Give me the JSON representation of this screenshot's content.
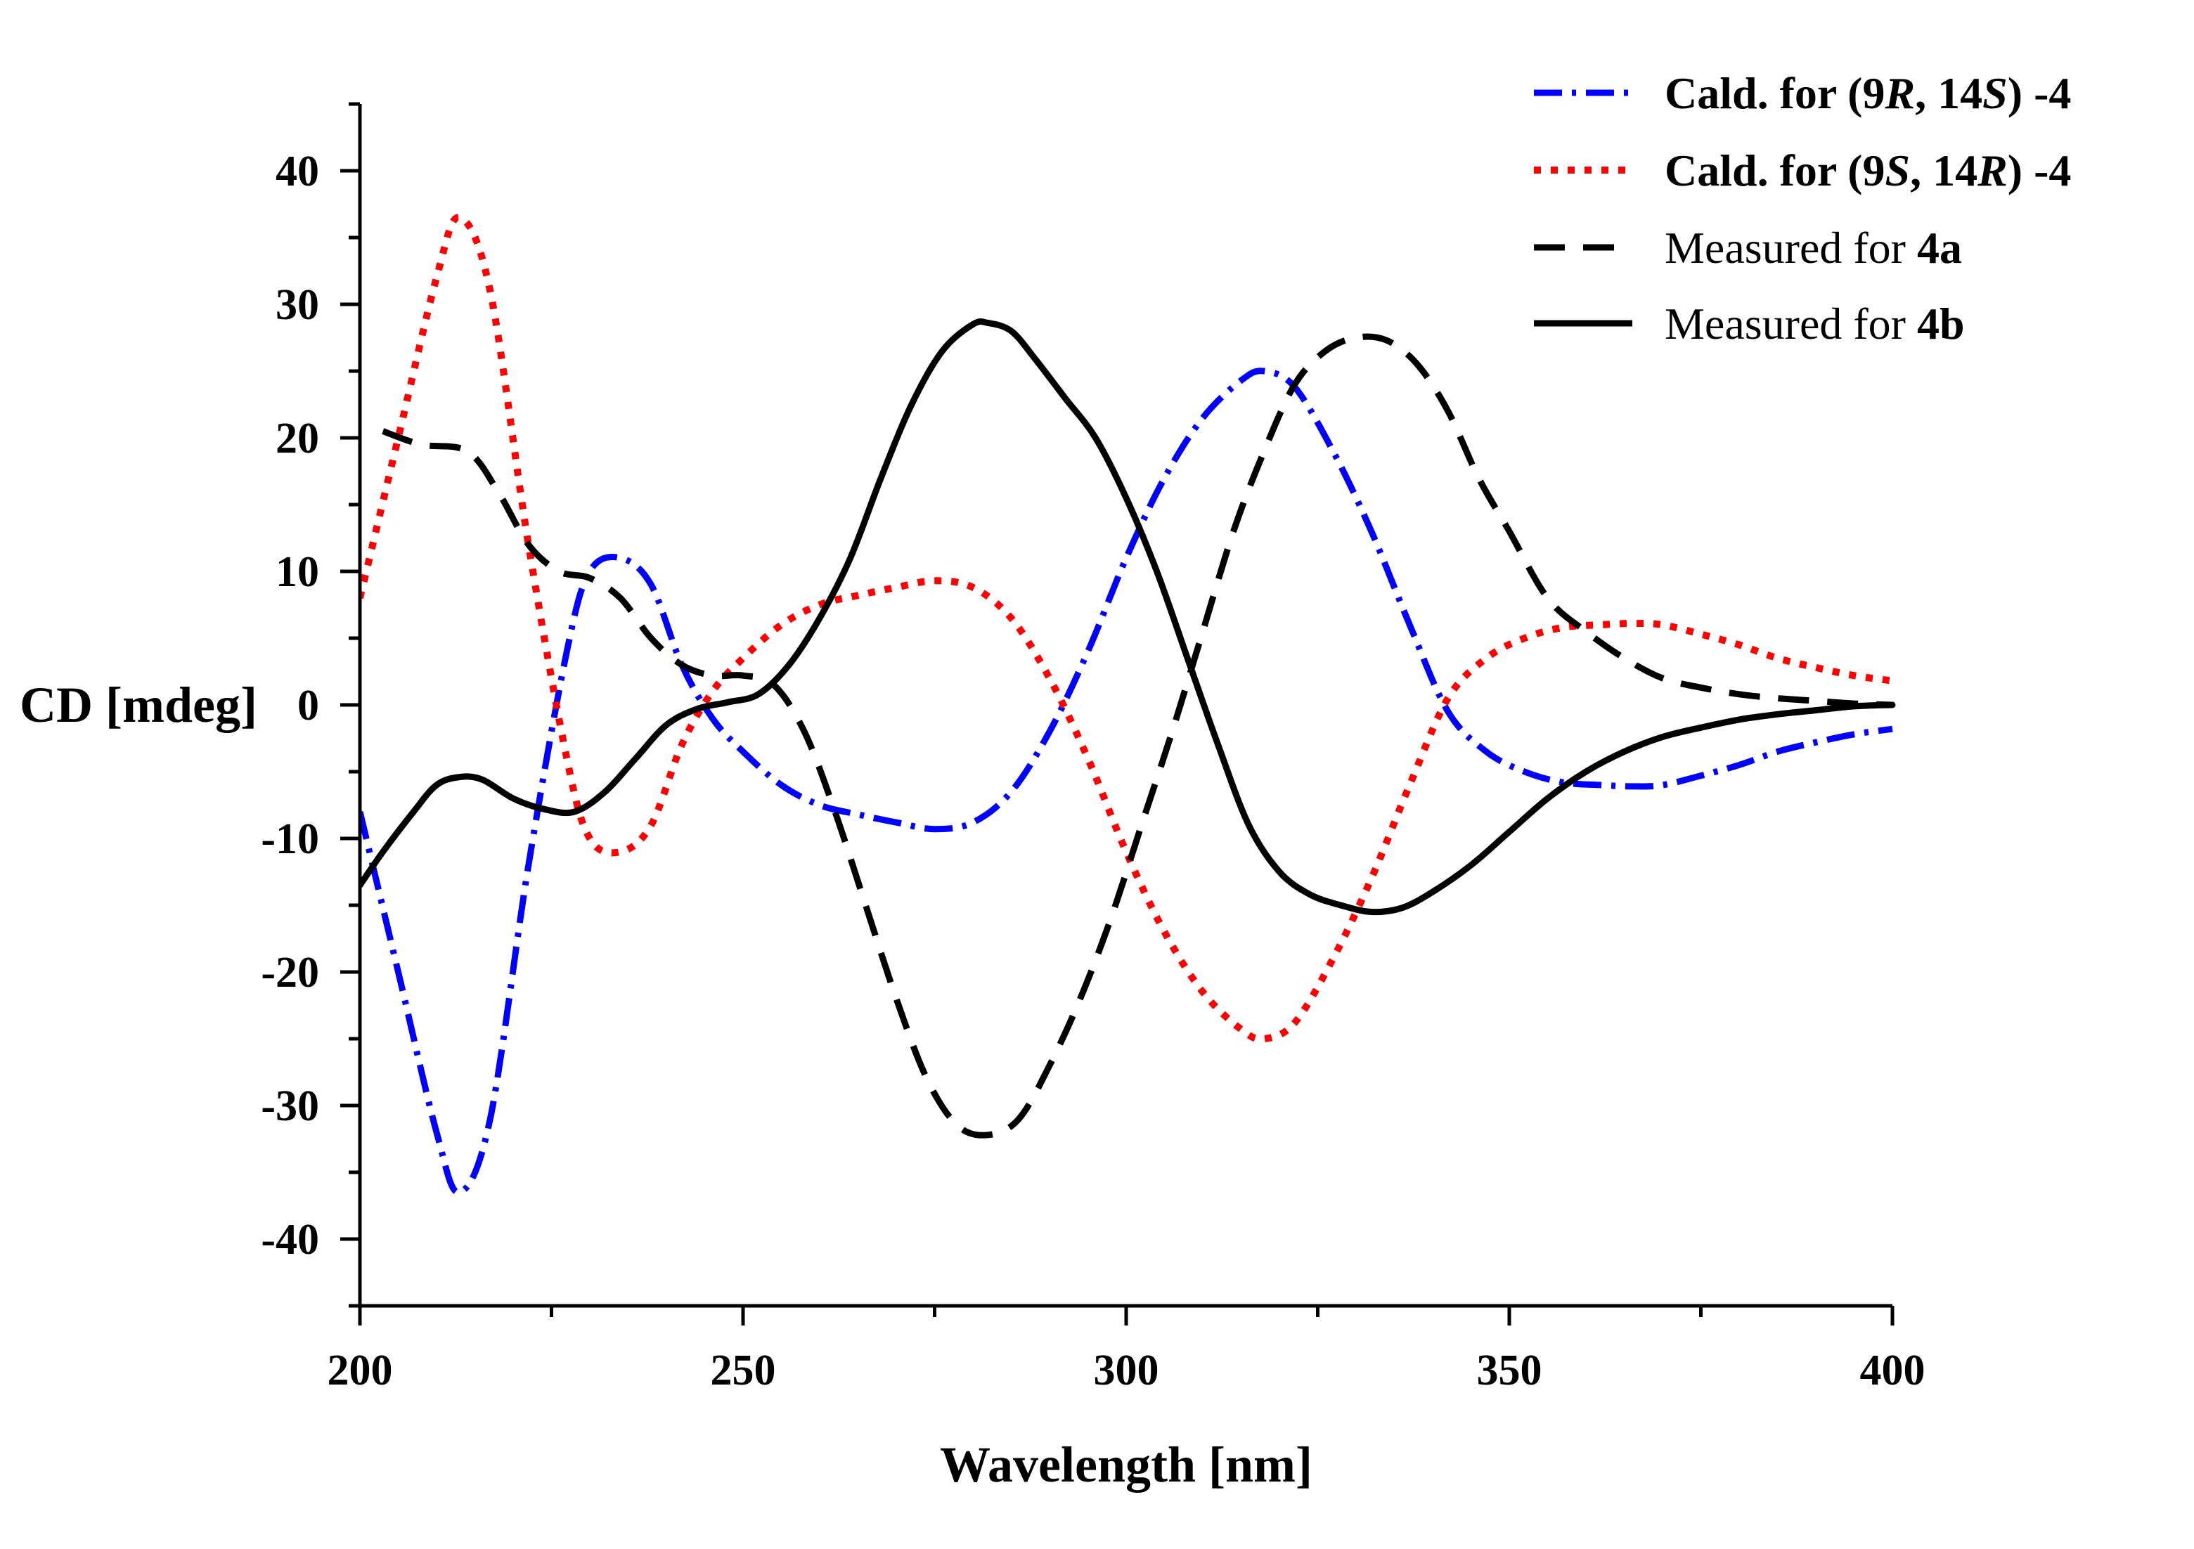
{
  "chart_data": {
    "type": "line",
    "xlabel": "Wavelength [nm]",
    "ylabel": "CD [mdeg]",
    "xlim": [
      200,
      400
    ],
    "ylim": [
      -45,
      45
    ],
    "x_ticks": [
      200,
      250,
      300,
      350,
      400
    ],
    "y_ticks": [
      -40,
      -30,
      -20,
      -10,
      0,
      10,
      20,
      30,
      40
    ],
    "legend_position": "top-right",
    "series": [
      {
        "name": "Cald. for (9R, 14S) -4",
        "name_parts": [
          {
            "text": "Cald. for (9",
            "style": "bold"
          },
          {
            "text": "R",
            "style": "bold-italic"
          },
          {
            "text": ", 14",
            "style": "bold"
          },
          {
            "text": "S",
            "style": "bold-italic"
          },
          {
            "text": ") -4",
            "style": "bold"
          }
        ],
        "color": "#0000ff",
        "line_style": "dash-dot",
        "x": [
          200,
          205,
          210,
          213,
          217,
          222,
          227,
          230,
          234,
          238,
          242,
          246,
          250,
          255,
          260,
          265,
          270,
          275,
          280,
          285,
          290,
          295,
          300,
          305,
          310,
          315,
          318,
          322,
          327,
          332,
          337,
          342,
          347,
          352,
          357,
          362,
          366,
          370,
          375,
          380,
          385,
          390,
          395,
          400
        ],
        "y": [
          -8,
          -20,
          -32,
          -36.5,
          -31,
          -12,
          4,
          10,
          11,
          9,
          3,
          -1,
          -3.5,
          -6,
          -7.5,
          -8.2,
          -8.8,
          -9.3,
          -8.8,
          -6.5,
          -2,
          4,
          11,
          17,
          21.5,
          24.3,
          25,
          23.8,
          19,
          13,
          6,
          -0.5,
          -3.5,
          -5,
          -5.8,
          -6,
          -6.1,
          -6,
          -5.3,
          -4.5,
          -3.5,
          -2.8,
          -2.2,
          -1.8
        ]
      },
      {
        "name": "Cald. for (9S, 14R) -4",
        "name_parts": [
          {
            "text": "Cald. for (9",
            "style": "bold"
          },
          {
            "text": "S",
            "style": "bold-italic"
          },
          {
            "text": ", 14",
            "style": "bold"
          },
          {
            "text": "R",
            "style": "bold-italic"
          },
          {
            "text": ") -4",
            "style": "bold"
          }
        ],
        "color": "#ff0000",
        "line_style": "dotted",
        "x": [
          200,
          205,
          210,
          213,
          217,
          222,
          227,
          230,
          234,
          238,
          242,
          246,
          250,
          255,
          260,
          265,
          270,
          275,
          280,
          285,
          290,
          295,
          300,
          305,
          310,
          315,
          318,
          322,
          327,
          332,
          337,
          342,
          347,
          352,
          357,
          362,
          366,
          370,
          375,
          380,
          385,
          390,
          395,
          400
        ],
        "y": [
          8,
          20,
          32,
          36.5,
          31,
          12,
          -4,
          -10,
          -11,
          -9,
          -3,
          1,
          3.5,
          6,
          7.5,
          8.2,
          8.8,
          9.3,
          8.8,
          6.5,
          2,
          -4,
          -11,
          -17,
          -21.5,
          -24.3,
          -25,
          -23.8,
          -19,
          -13,
          -6,
          0.5,
          3.5,
          5,
          5.8,
          6,
          6.1,
          6,
          5.3,
          4.5,
          3.5,
          2.8,
          2.2,
          1.8
        ]
      },
      {
        "name": "Measured for 4a",
        "name_parts": [
          {
            "text": "Measured for ",
            "style": "normal"
          },
          {
            "text": "4a",
            "style": "bold"
          }
        ],
        "color": "#000000",
        "line_style": "dashed",
        "x": [
          203,
          208,
          214,
          218,
          222,
          226,
          230,
          234,
          238,
          242,
          246,
          250,
          254,
          258,
          262,
          266,
          270,
          274,
          278,
          282,
          286,
          290,
          294,
          298,
          302,
          306,
          310,
          314,
          318,
          322,
          326,
          330,
          334,
          338,
          342,
          346,
          350,
          355,
          360,
          365,
          370,
          375,
          380,
          385,
          390,
          395,
          400
        ],
        "y": [
          20.5,
          19.5,
          19,
          16,
          12,
          10,
          9.5,
          8,
          5,
          3,
          2.2,
          2.2,
          1.5,
          -2,
          -8,
          -15,
          -22,
          -28,
          -31.5,
          -32.2,
          -31,
          -27,
          -22,
          -16,
          -9,
          -2,
          5.5,
          13,
          19,
          24,
          26.5,
          27.5,
          27.3,
          25.5,
          22,
          17,
          13,
          8,
          5.5,
          3.5,
          2,
          1.3,
          0.8,
          0.5,
          0.3,
          0.1,
          0
        ]
      },
      {
        "name": "Measured for 4b",
        "name_parts": [
          {
            "text": "Measured for ",
            "style": "normal"
          },
          {
            "text": "4b",
            "style": "bold"
          }
        ],
        "color": "#000000",
        "line_style": "solid",
        "x": [
          200,
          203,
          207,
          210,
          213,
          216,
          220,
          224,
          228,
          232,
          236,
          240,
          244,
          248,
          252,
          256,
          260,
          264,
          268,
          272,
          276,
          280,
          282,
          285,
          288,
          292,
          296,
          300,
          304,
          308,
          312,
          316,
          320,
          324,
          328,
          332,
          336,
          340,
          345,
          350,
          355,
          360,
          365,
          370,
          375,
          380,
          385,
          390,
          395,
          400
        ],
        "y": [
          -13.5,
          -11,
          -8,
          -6,
          -5.4,
          -5.6,
          -7,
          -7.8,
          -8,
          -6.5,
          -4,
          -1.5,
          -0.3,
          0.2,
          0.8,
          3,
          6.5,
          11,
          17,
          22.5,
          26.5,
          28.5,
          28.6,
          28,
          26,
          23,
          20,
          15.5,
          10,
          3.5,
          -3,
          -9,
          -12.5,
          -14.2,
          -15,
          -15.5,
          -15.2,
          -14,
          -12,
          -9.5,
          -7,
          -5,
          -3.5,
          -2.4,
          -1.7,
          -1.1,
          -0.7,
          -0.4,
          -0.1,
          0
        ]
      }
    ]
  }
}
